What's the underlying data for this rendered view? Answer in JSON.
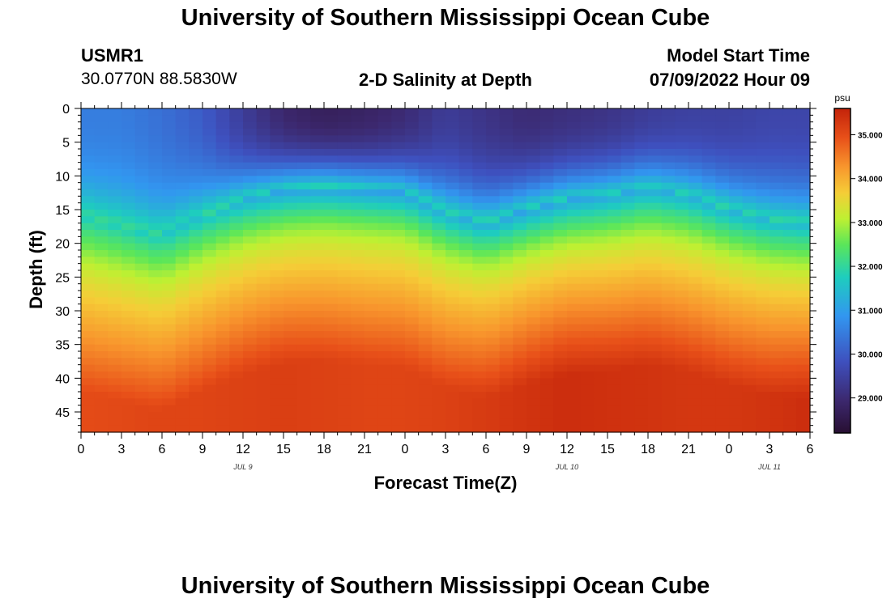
{
  "page": {
    "title": "University of Southern Mississippi Ocean Cube",
    "footer_title": "University of Southern Mississippi Ocean Cube",
    "station": "USMR1",
    "location": "30.0770N  88.5830W",
    "model_start_label": "Model Start Time",
    "model_start_time": "07/09/2022 Hour 09"
  },
  "chart_data": {
    "type": "heatmap",
    "title": "2-D Salinity at Depth",
    "xlabel": "Forecast Time(Z)",
    "ylabel": "Depth (ft)",
    "x_range_hours": [
      0,
      54
    ],
    "y_range_ft": [
      0,
      48
    ],
    "y_inverted": true,
    "x_ticks": [
      "0",
      "3",
      "6",
      "9",
      "12",
      "15",
      "18",
      "21",
      "0",
      "3",
      "6",
      "9",
      "12",
      "15",
      "18",
      "21",
      "0",
      "3",
      "6"
    ],
    "x_tick_hours": [
      0,
      3,
      6,
      9,
      12,
      15,
      18,
      21,
      24,
      27,
      30,
      33,
      36,
      39,
      42,
      45,
      48,
      51,
      54
    ],
    "y_ticks": [
      0,
      5,
      10,
      15,
      20,
      25,
      30,
      35,
      40,
      45
    ],
    "date_labels": [
      {
        "label": "JUL 9",
        "hour": 12
      },
      {
        "label": "JUL 10",
        "hour": 36
      },
      {
        "label": "JUL 11",
        "hour": 51
      }
    ],
    "colorbar": {
      "unit": "psu",
      "range": [
        28.2,
        35.6
      ],
      "ticks": [
        "29.000",
        "30.000",
        "31.000",
        "32.000",
        "33.000",
        "34.000",
        "35.000"
      ],
      "tick_values": [
        29,
        30,
        31,
        32,
        33,
        34,
        35
      ]
    },
    "cell_size": {
      "hours": 1,
      "feet": 1
    },
    "profile": {
      "times_h": [
        0,
        3,
        6,
        9,
        12,
        15,
        18,
        21,
        24,
        27,
        30,
        33,
        36,
        39,
        42,
        45,
        48,
        51,
        54
      ],
      "surface_psu": [
        30.5,
        30.5,
        30.3,
        30.0,
        29.4,
        28.9,
        28.7,
        28.8,
        29.0,
        29.4,
        29.2,
        29.0,
        29.1,
        29.2,
        29.4,
        29.5,
        29.5,
        29.6,
        29.6
      ],
      "halocline_ft": [
        16,
        17.5,
        19,
        16,
        13.5,
        12,
        11.5,
        12,
        12.5,
        15.5,
        17,
        15,
        13.5,
        13,
        12,
        13,
        15,
        16.5,
        17
      ],
      "bottom_psu": [
        35.0,
        35.05,
        35.1,
        35.1,
        35.15,
        35.2,
        35.15,
        35.1,
        35.1,
        35.15,
        35.25,
        35.35,
        35.45,
        35.4,
        35.35,
        35.3,
        35.3,
        35.35,
        35.45
      ]
    }
  }
}
